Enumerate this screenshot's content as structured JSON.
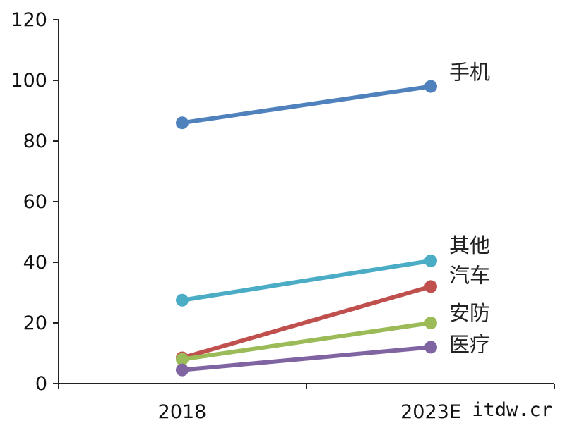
{
  "chart_data": {
    "type": "line",
    "title": "",
    "xlabel": "",
    "ylabel": "",
    "x": [
      "2018",
      "2023E"
    ],
    "ylim": [
      0,
      120
    ],
    "yticks": [
      0,
      20,
      40,
      60,
      80,
      100,
      120
    ],
    "grid": false,
    "legend": "inline labels at line ends",
    "series": [
      {
        "name": "手机",
        "values": [
          86,
          98
        ],
        "color": "#4F81BD"
      },
      {
        "name": "其他",
        "values": [
          27.5,
          40.5
        ],
        "color": "#4BACC6"
      },
      {
        "name": "汽车",
        "values": [
          8.5,
          32
        ],
        "color": "#C0504D"
      },
      {
        "name": "安防",
        "values": [
          8,
          20
        ],
        "color": "#9BBB59"
      },
      {
        "name": "医疗",
        "values": [
          4.5,
          12
        ],
        "color": "#8064A2"
      }
    ]
  },
  "watermark": "itdw.cr"
}
